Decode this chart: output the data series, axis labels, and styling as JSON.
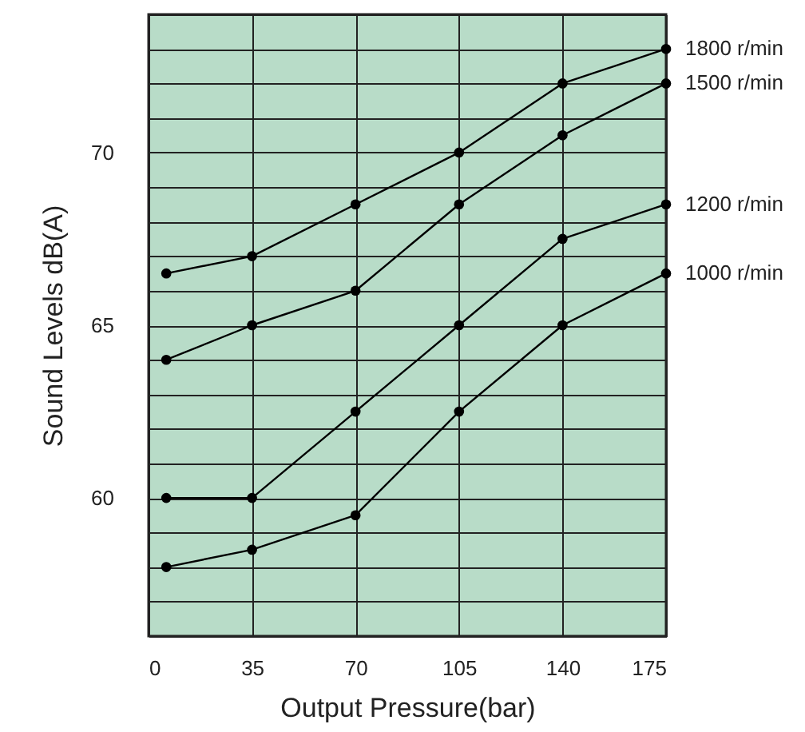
{
  "chart_data": {
    "type": "line",
    "xlabel": "Output Pressure(bar)",
    "ylabel": "Sound Levels dB(A)",
    "x": [
      6,
      35,
      70,
      105,
      140,
      175
    ],
    "series": [
      {
        "name": "1800 r/min",
        "color": "#000000",
        "values": [
          66.5,
          67,
          68.5,
          70,
          72,
          73
        ]
      },
      {
        "name": "1500 r/min",
        "color": "#000000",
        "values": [
          64,
          65,
          66,
          68.5,
          70.5,
          72
        ]
      },
      {
        "name": "1200 r/min",
        "color": "#000000",
        "values": [
          60,
          60,
          62.5,
          65,
          67.5,
          68.5
        ]
      },
      {
        "name": "1000 r/min",
        "color": "#000000",
        "values": [
          58,
          58.5,
          59.5,
          62.5,
          65,
          66.5
        ]
      }
    ],
    "xlim": [
      0,
      175
    ],
    "xticks": [
      0,
      35,
      70,
      105,
      140,
      175
    ],
    "ylim": [
      56,
      74
    ],
    "yticks": [
      {
        "value": 56,
        "label": null
      },
      {
        "value": 57,
        "label": null
      },
      {
        "value": 58,
        "label": null
      },
      {
        "value": 59,
        "label": null
      },
      60,
      {
        "value": 61,
        "label": null
      },
      {
        "value": 62,
        "label": null
      },
      {
        "value": 63,
        "label": null
      },
      {
        "value": 64,
        "label": null
      },
      65,
      {
        "value": 66,
        "label": null
      },
      {
        "value": 67,
        "label": null
      },
      {
        "value": 68,
        "label": null
      },
      {
        "value": 69,
        "label": null
      },
      70,
      {
        "value": 71,
        "label": null
      },
      {
        "value": 72,
        "label": null
      },
      {
        "value": 73,
        "label": null
      },
      {
        "value": 74,
        "label": null
      }
    ],
    "grid": true,
    "legend": false,
    "marker": "circle",
    "line_style": "solid"
  }
}
